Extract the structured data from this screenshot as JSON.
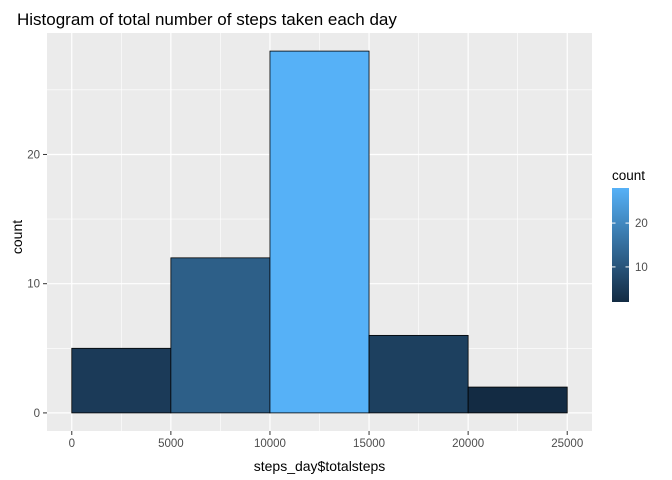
{
  "chart_data": {
    "type": "bar",
    "title": "Histogram of total number of steps taken each day",
    "xlabel": "steps_day$totalsteps",
    "ylabel": "count",
    "bins": [
      {
        "x0": 0,
        "x1": 5000,
        "count": 5
      },
      {
        "x0": 5000,
        "x1": 10000,
        "count": 12
      },
      {
        "x0": 10000,
        "x1": 15000,
        "count": 28
      },
      {
        "x0": 15000,
        "x1": 20000,
        "count": 6
      },
      {
        "x0": 20000,
        "x1": 25000,
        "count": 2
      }
    ],
    "xlim": [
      -1250,
      26250
    ],
    "ylim": [
      -1.4,
      29.4
    ],
    "x_ticks": [
      0,
      5000,
      10000,
      15000,
      20000,
      25000
    ],
    "x_tick_labels": [
      "0",
      "5000",
      "10000",
      "15000",
      "20000",
      "25000"
    ],
    "y_ticks": [
      0,
      10,
      20
    ],
    "y_tick_labels": [
      "0",
      "10",
      "20"
    ],
    "grid": true,
    "legend": {
      "title": "count",
      "placement": "right",
      "type": "colorbar",
      "range": [
        2,
        28
      ],
      "ticks": [
        10,
        20
      ],
      "tick_labels": [
        "10",
        "20"
      ],
      "color_low": "#132B43",
      "color_high": "#56B1F7"
    },
    "colors": {
      "panel_background": "#EBEBEB",
      "grid": "#FFFFFF",
      "bar_outline": "#000000"
    }
  }
}
